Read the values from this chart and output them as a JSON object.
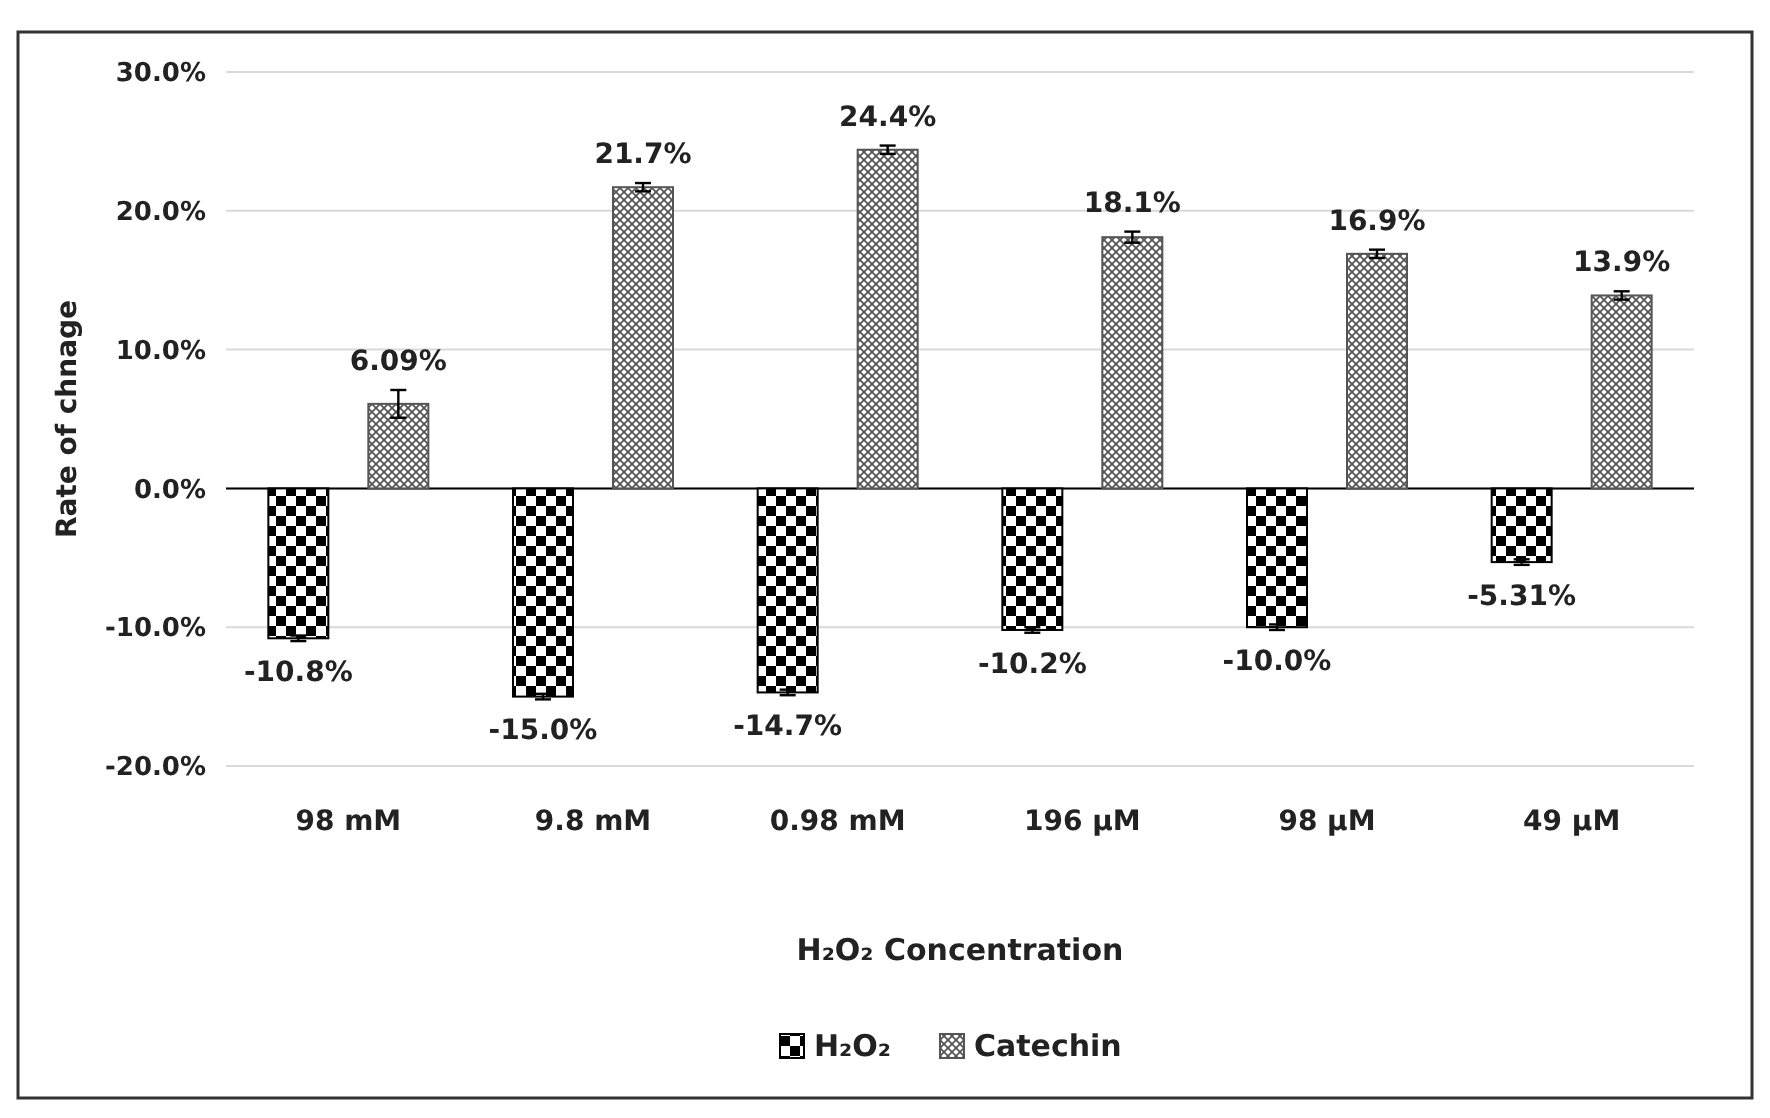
{
  "chart_data": {
    "type": "bar",
    "ylabel": "Rate of chnage",
    "xlabel": "H₂O₂ Concentration",
    "categories": [
      "98 mM",
      "9.8 mM",
      "0.98 mM",
      "196 µM",
      "98 µM",
      "49 µM"
    ],
    "series": [
      {
        "name": "H₂O₂",
        "color": "#000000",
        "values": [
          -10.8,
          -15.0,
          -14.7,
          -10.2,
          -10.0,
          -5.31
        ],
        "errors": [
          0.2,
          0.2,
          0.2,
          0.2,
          0.2,
          0.2
        ],
        "value_labels": [
          "-10.8%",
          "-15.0%",
          "-14.7%",
          "-10.2%",
          "-10.0%",
          "-5.31%"
        ]
      },
      {
        "name": "Catechin",
        "color": "#555555",
        "values": [
          6.09,
          21.7,
          24.4,
          18.1,
          16.9,
          13.9
        ],
        "errors": [
          1.0,
          0.3,
          0.3,
          0.4,
          0.3,
          0.3
        ],
        "value_labels": [
          "6.09%",
          "21.7%",
          "24.4%",
          "18.1%",
          "16.9%",
          "13.9%"
        ]
      }
    ],
    "ylim": [
      -20,
      30
    ],
    "yticks": [
      {
        "value": -20,
        "label": "-20.0%"
      },
      {
        "value": -10,
        "label": "-10.0%"
      },
      {
        "value": 0,
        "label": "0.0%"
      },
      {
        "value": 10,
        "label": "10.0%"
      },
      {
        "value": 20,
        "label": "20.0%"
      },
      {
        "value": 30,
        "label": "30.0%"
      }
    ],
    "grid": "y",
    "legend": "bottom"
  }
}
